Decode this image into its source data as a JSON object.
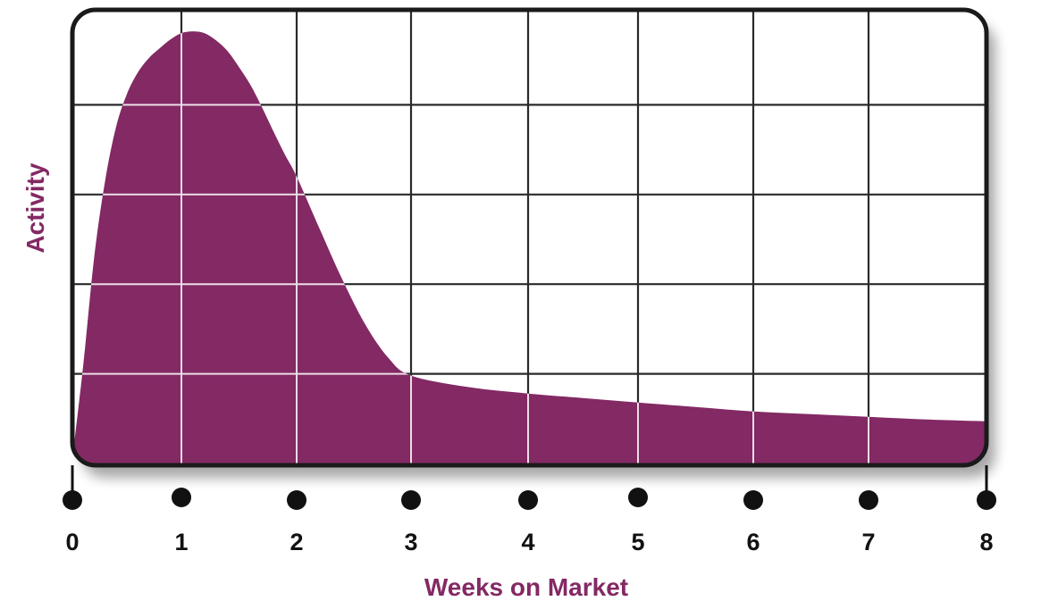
{
  "chart_data": {
    "type": "area",
    "xlabel": "Weeks on Market",
    "ylabel": "Activity",
    "x_ticks": [
      "0",
      "1",
      "2",
      "3",
      "4",
      "5",
      "6",
      "7",
      "8"
    ],
    "xlim": [
      0,
      8
    ],
    "ylim": [
      0,
      5
    ],
    "y_tick_labels_shown": false,
    "grid": true,
    "series": [
      {
        "x": [
          0,
          0.1,
          0.2,
          0.3,
          0.4,
          0.5,
          0.6,
          0.7,
          0.8,
          0.9,
          1.0,
          1.1,
          1.2,
          1.3,
          1.4,
          1.5,
          1.6,
          1.7,
          1.8,
          1.9,
          2.0,
          2.2,
          2.4,
          2.6,
          2.8,
          3.0,
          3.5,
          4.0,
          4.5,
          5.0,
          5.5,
          6.0,
          6.5,
          7.0,
          7.5,
          8.0
        ],
        "y": [
          0.05,
          1.1,
          2.3,
          3.15,
          3.75,
          4.12,
          4.36,
          4.52,
          4.63,
          4.73,
          4.8,
          4.82,
          4.8,
          4.72,
          4.6,
          4.42,
          4.22,
          3.97,
          3.7,
          3.44,
          3.2,
          2.62,
          2.05,
          1.55,
          1.18,
          0.98,
          0.85,
          0.78,
          0.73,
          0.68,
          0.63,
          0.58,
          0.55,
          0.52,
          0.49,
          0.47
        ]
      }
    ],
    "colors": {
      "fill": "#832964",
      "label": "#832964",
      "grid": "#2a2a2a",
      "grid_over_fill": "#ecdde7",
      "frame": "#1a1a1a",
      "tick_dot": "#111111"
    }
  }
}
